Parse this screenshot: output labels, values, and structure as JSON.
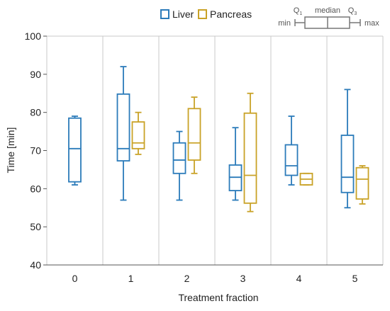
{
  "chart_data": {
    "type": "box",
    "xlabel": "Treatment fraction",
    "ylabel": "Time [min]",
    "ylim": [
      40,
      100
    ],
    "yticks": [
      40,
      50,
      60,
      70,
      80,
      90,
      100
    ],
    "grid": "vertical",
    "legend_position": "top",
    "categories": [
      "0",
      "1",
      "2",
      "3",
      "4",
      "5"
    ],
    "series": [
      {
        "name": "Liver",
        "color": "#2b7bba",
        "boxes": [
          {
            "category": "0",
            "min": 61,
            "q1": 61.8,
            "median": 70.5,
            "q3": 78.5,
            "max": 79
          },
          {
            "category": "1",
            "min": 57,
            "q1": 67.3,
            "median": 70.5,
            "q3": 84.8,
            "max": 92
          },
          {
            "category": "2",
            "min": 57,
            "q1": 64,
            "median": 67.5,
            "q3": 72,
            "max": 75
          },
          {
            "category": "3",
            "min": 57,
            "q1": 59.5,
            "median": 63,
            "q3": 66.2,
            "max": 76
          },
          {
            "category": "4",
            "min": 61,
            "q1": 63.5,
            "median": 66,
            "q3": 71.5,
            "max": 79
          },
          {
            "category": "5",
            "min": 55,
            "q1": 59,
            "median": 63,
            "q3": 74,
            "max": 86
          }
        ]
      },
      {
        "name": "Pancreas",
        "color": "#c9a227",
        "boxes": [
          {
            "category": "1",
            "min": 69,
            "q1": 70.5,
            "median": 72,
            "q3": 77.5,
            "max": 80
          },
          {
            "category": "2",
            "min": 64,
            "q1": 67.5,
            "median": 72,
            "q3": 81,
            "max": 84
          },
          {
            "category": "3",
            "min": 54,
            "q1": 56.2,
            "median": 63.5,
            "q3": 79.8,
            "max": 85
          },
          {
            "category": "4",
            "min": 61,
            "q1": 61,
            "median": 62.5,
            "q3": 64,
            "max": 64
          },
          {
            "category": "5",
            "min": 56,
            "q1": 57.3,
            "median": 62.5,
            "q3": 65.5,
            "max": 66
          }
        ]
      }
    ],
    "key": {
      "min": "min",
      "q1": "Q",
      "q1_sub": "1",
      "median": "median",
      "q3": "Q",
      "q3_sub": "3",
      "max": "max",
      "color": "#777777"
    }
  },
  "colors": {
    "axis": "#555555",
    "grid": "#c8c8c8"
  }
}
